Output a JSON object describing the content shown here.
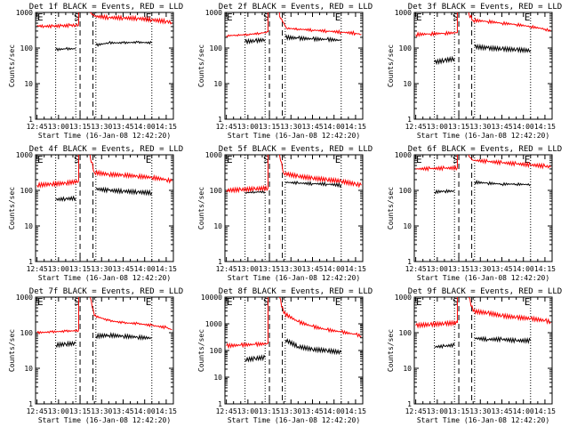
{
  "figure": {
    "ylabel": "Counts/sec",
    "xlabel": "Start Time (16-Jan-08 12:42:20)",
    "xticks": [
      "12:45",
      "13:00",
      "13:15",
      "13:30",
      "13:45",
      "14:00",
      "14:15"
    ],
    "yticks": [
      "1",
      "10",
      "100",
      "1000"
    ],
    "yticks_10k": [
      "1",
      "10",
      "100",
      "1000",
      "10000"
    ],
    "marker_E": "E",
    "marker_S": "S",
    "colors": {
      "events": "#000000",
      "lld": "#ff0000"
    }
  },
  "chart_data": [
    {
      "type": "line",
      "title": "Det 1f BLACK = Events, RED = LLD",
      "xlabel": "Start Time (16-Jan-08 12:42:20)",
      "ylabel": "Counts/sec",
      "ylim": [
        1,
        1000
      ],
      "xlim": [
        "12:44",
        "14:20"
      ],
      "series": [
        {
          "color": "#ff0000",
          "segments": [
            {
              "x": [
                "12:45",
                "12:50",
                "12:56",
                "13:02",
                "13:08",
                "13:12",
                "13:14"
              ],
              "y": [
                420,
                410,
                410,
                420,
                430,
                440,
                450
              ]
            },
            {
              "x": [
                "13:22",
                "13:25",
                "13:35",
                "13:45",
                "13:55",
                "14:05",
                "14:15",
                "14:19"
              ],
              "y": [
                1000,
                780,
                720,
                700,
                680,
                620,
                560,
                520
              ]
            }
          ]
        },
        {
          "color": "#000000",
          "segments": [
            {
              "x": [
                "12:58",
                "13:05",
                "13:12"
              ],
              "y": [
                90,
                95,
                95
              ]
            },
            {
              "x": [
                "13:26",
                "13:35",
                "13:45",
                "13:55",
                "14:05"
              ],
              "y": [
                120,
                140,
                140,
                145,
                140
              ]
            }
          ]
        }
      ],
      "vlines_dotted": [
        "12:58",
        "13:12",
        "13:26",
        "14:05"
      ],
      "vlines_dashed": [
        "13:15",
        "13:24"
      ]
    },
    {
      "type": "line",
      "title": "Det 2f BLACK = Events, RED = LLD",
      "xlabel": "Start Time (16-Jan-08 12:42:20)",
      "ylabel": "Counts/sec",
      "ylim": [
        1,
        1000
      ],
      "xlim": [
        "12:44",
        "14:20"
      ],
      "series": [
        {
          "color": "#ff0000",
          "segments": [
            {
              "x": [
                "12:45",
                "12:52",
                "13:00",
                "13:08",
                "13:14"
              ],
              "y": [
                220,
                230,
                240,
                260,
                280
              ]
            },
            {
              "x": [
                "13:22",
                "13:27",
                "13:35",
                "13:45",
                "13:55",
                "14:05",
                "14:15",
                "14:19"
              ],
              "y": [
                800,
                360,
                340,
                320,
                300,
                280,
                260,
                240
              ]
            }
          ]
        },
        {
          "color": "#000000",
          "segments": [
            {
              "x": [
                "12:58",
                "13:05",
                "13:12"
              ],
              "y": [
                150,
                160,
                170
              ]
            },
            {
              "x": [
                "13:26",
                "13:35",
                "13:45",
                "13:55",
                "14:05"
              ],
              "y": [
                200,
                190,
                180,
                175,
                165
              ]
            }
          ]
        }
      ],
      "vlines_dotted": [
        "12:58",
        "13:12",
        "13:26",
        "14:05"
      ],
      "vlines_dashed": [
        "13:15",
        "13:24"
      ]
    },
    {
      "type": "line",
      "title": "Det 3f BLACK = Events, RED = LLD",
      "xlabel": "Start Time (16-Jan-08 12:42:20)",
      "ylabel": "Counts/sec",
      "ylim": [
        1,
        1000
      ],
      "xlim": [
        "12:44",
        "14:20"
      ],
      "series": [
        {
          "color": "#ff0000",
          "segments": [
            {
              "x": [
                "12:45",
                "12:55",
                "13:05",
                "13:14"
              ],
              "y": [
                240,
                250,
                260,
                270
              ]
            },
            {
              "x": [
                "13:22",
                "13:25",
                "13:35",
                "13:45",
                "13:55",
                "14:05",
                "14:15",
                "14:19"
              ],
              "y": [
                900,
                600,
                560,
                500,
                460,
                400,
                340,
                300
              ]
            }
          ]
        },
        {
          "color": "#000000",
          "segments": [
            {
              "x": [
                "12:58",
                "13:05",
                "13:12"
              ],
              "y": [
                40,
                45,
                50
              ]
            },
            {
              "x": [
                "13:26",
                "13:35",
                "13:45",
                "13:55",
                "14:05"
              ],
              "y": [
                110,
                100,
                95,
                90,
                85
              ]
            }
          ]
        }
      ],
      "vlines_dotted": [
        "12:58",
        "13:12",
        "13:26",
        "14:05"
      ],
      "vlines_dashed": [
        "13:15",
        "13:24"
      ]
    },
    {
      "type": "line",
      "title": "Det 4f BLACK = Events, RED = LLD",
      "xlabel": "Start Time (16-Jan-08 12:42:20)",
      "ylabel": "Counts/sec",
      "ylim": [
        1,
        1000
      ],
      "xlim": [
        "12:44",
        "14:20"
      ],
      "series": [
        {
          "color": "#ff0000",
          "segments": [
            {
              "x": [
                "12:45",
                "12:55",
                "13:05",
                "13:14"
              ],
              "y": [
                140,
                150,
                160,
                180
              ]
            },
            {
              "x": [
                "13:22",
                "13:25",
                "13:35",
                "13:45",
                "13:55",
                "14:05",
                "14:15",
                "14:19"
              ],
              "y": [
                900,
                320,
                280,
                270,
                250,
                230,
                200,
                180
              ]
            }
          ]
        },
        {
          "color": "#000000",
          "segments": [
            {
              "x": [
                "12:58",
                "13:05",
                "13:12"
              ],
              "y": [
                55,
                58,
                60
              ]
            },
            {
              "x": [
                "13:26",
                "13:35",
                "13:45",
                "13:55",
                "14:05"
              ],
              "y": [
                110,
                100,
                95,
                90,
                85
              ]
            }
          ]
        }
      ],
      "vlines_dotted": [
        "12:58",
        "13:12",
        "13:26",
        "14:05"
      ],
      "vlines_dashed": [
        "13:15",
        "13:24"
      ]
    },
    {
      "type": "line",
      "title": "Det 5f BLACK = Events, RED = LLD",
      "xlabel": "Start Time (16-Jan-08 12:42:20)",
      "ylabel": "Counts/sec",
      "ylim": [
        1,
        1000
      ],
      "xlim": [
        "12:44",
        "14:20"
      ],
      "series": [
        {
          "color": "#ff0000",
          "segments": [
            {
              "x": [
                "12:45",
                "12:55",
                "13:05",
                "13:14"
              ],
              "y": [
                100,
                105,
                110,
                115
              ]
            },
            {
              "x": [
                "13:22",
                "13:25",
                "13:35",
                "13:45",
                "13:55",
                "14:05",
                "14:15",
                "14:19"
              ],
              "y": [
                1000,
                300,
                250,
                220,
                200,
                180,
                150,
                140
              ]
            }
          ]
        },
        {
          "color": "#000000",
          "segments": [
            {
              "x": [
                "12:58",
                "13:05",
                "13:12"
              ],
              "y": [
                85,
                90,
                90
              ]
            },
            {
              "x": [
                "13:26",
                "13:35",
                "13:45",
                "13:55",
                "14:05"
              ],
              "y": [
                170,
                160,
                155,
                150,
                140
              ]
            }
          ]
        }
      ],
      "vlines_dotted": [
        "12:58",
        "13:12",
        "13:26",
        "14:05"
      ],
      "vlines_dashed": [
        "13:15",
        "13:24"
      ]
    },
    {
      "type": "line",
      "title": "Det 6f BLACK = Events, RED = LLD",
      "xlabel": "Start Time (16-Jan-08 12:42:20)",
      "ylabel": "Counts/sec",
      "ylim": [
        1,
        1000
      ],
      "xlim": [
        "12:44",
        "14:20"
      ],
      "series": [
        {
          "color": "#ff0000",
          "segments": [
            {
              "x": [
                "12:45",
                "12:55",
                "13:05",
                "13:14"
              ],
              "y": [
                400,
                410,
                420,
                430
              ]
            },
            {
              "x": [
                "13:22",
                "13:25",
                "13:35",
                "13:45",
                "13:55",
                "14:05",
                "14:15",
                "14:19"
              ],
              "y": [
                900,
                700,
                650,
                600,
                560,
                520,
                480,
                450
              ]
            }
          ]
        },
        {
          "color": "#000000",
          "segments": [
            {
              "x": [
                "12:58",
                "13:05",
                "13:12"
              ],
              "y": [
                90,
                95,
                95
              ]
            },
            {
              "x": [
                "13:26",
                "13:35",
                "13:45",
                "13:55",
                "14:05"
              ],
              "y": [
                170,
                160,
                150,
                150,
                145
              ]
            }
          ]
        }
      ],
      "vlines_dotted": [
        "12:58",
        "13:12",
        "13:26",
        "14:05"
      ],
      "vlines_dashed": [
        "13:15",
        "13:24"
      ]
    },
    {
      "type": "line",
      "title": "Det 7f BLACK = Events, RED = LLD",
      "xlabel": "Start Time (16-Jan-08 12:42:20)",
      "ylabel": "Counts/sec",
      "ylim": [
        1,
        1000
      ],
      "xlim": [
        "12:44",
        "14:20"
      ],
      "series": [
        {
          "color": "#ff0000",
          "segments": [
            {
              "x": [
                "12:45",
                "12:55",
                "13:05",
                "13:14"
              ],
              "y": [
                100,
                105,
                110,
                115
              ]
            },
            {
              "x": [
                "13:22",
                "13:25",
                "13:35",
                "13:45",
                "13:55",
                "14:05",
                "14:15",
                "14:19"
              ],
              "y": [
                1000,
                300,
                220,
                190,
                180,
                160,
                140,
                120
              ]
            }
          ]
        },
        {
          "color": "#000000",
          "segments": [
            {
              "x": [
                "12:58",
                "13:05",
                "13:12"
              ],
              "y": [
                45,
                48,
                50
              ]
            },
            {
              "x": [
                "13:26",
                "13:35",
                "13:45",
                "13:55",
                "14:05"
              ],
              "y": [
                80,
                85,
                80,
                75,
                70
              ]
            }
          ]
        }
      ],
      "vlines_dotted": [
        "12:58",
        "13:12",
        "13:26",
        "14:05"
      ],
      "vlines_dashed": [
        "13:15",
        "13:24"
      ]
    },
    {
      "type": "line",
      "title": "Det 8f BLACK = Events, RED = LLD",
      "xlabel": "Start Time (16-Jan-08 12:42:20)",
      "ylabel": "Counts/sec",
      "ylim": [
        1,
        10000
      ],
      "xlim": [
        "12:44",
        "14:20"
      ],
      "series": [
        {
          "color": "#ff0000",
          "segments": [
            {
              "x": [
                "12:45",
                "12:55",
                "13:05",
                "13:14"
              ],
              "y": [
                150,
                160,
                170,
                180
              ]
            },
            {
              "x": [
                "13:22",
                "13:25",
                "13:35",
                "13:45",
                "13:55",
                "14:05",
                "14:15",
                "14:19"
              ],
              "y": [
                10000,
                2500,
                1200,
                800,
                600,
                500,
                400,
                350
              ]
            }
          ]
        },
        {
          "color": "#000000",
          "segments": [
            {
              "x": [
                "12:58",
                "13:05",
                "13:12"
              ],
              "y": [
                45,
                50,
                55
              ]
            },
            {
              "x": [
                "13:26",
                "13:35",
                "13:45",
                "13:55",
                "14:05"
              ],
              "y": [
                250,
                140,
                110,
                100,
                85
              ]
            }
          ]
        }
      ],
      "vlines_dotted": [
        "12:58",
        "13:12",
        "13:26",
        "14:05"
      ],
      "vlines_dashed": [
        "13:15",
        "13:24"
      ]
    },
    {
      "type": "line",
      "title": "Det 9f BLACK = Events, RED = LLD",
      "xlabel": "Start Time (16-Jan-08 12:42:20)",
      "ylabel": "Counts/sec",
      "ylim": [
        1,
        1000
      ],
      "xlim": [
        "12:44",
        "14:20"
      ],
      "series": [
        {
          "color": "#ff0000",
          "segments": [
            {
              "x": [
                "12:45",
                "12:55",
                "13:05",
                "13:14"
              ],
              "y": [
                160,
                170,
                180,
                190
              ]
            },
            {
              "x": [
                "13:22",
                "13:25",
                "13:35",
                "13:45",
                "13:55",
                "14:05",
                "14:15",
                "14:19"
              ],
              "y": [
                1000,
                400,
                360,
                300,
                270,
                250,
                220,
                200
              ]
            }
          ]
        },
        {
          "color": "#000000",
          "segments": [
            {
              "x": [
                "12:58",
                "13:05",
                "13:12"
              ],
              "y": [
                40,
                42,
                45
              ]
            },
            {
              "x": [
                "13:26",
                "13:35",
                "13:45",
                "13:55",
                "14:05"
              ],
              "y": [
                70,
                65,
                65,
                60,
                60
              ]
            }
          ]
        }
      ],
      "vlines_dotted": [
        "12:58",
        "13:12",
        "13:26",
        "14:05"
      ],
      "vlines_dashed": [
        "13:15",
        "13:24"
      ]
    }
  ]
}
